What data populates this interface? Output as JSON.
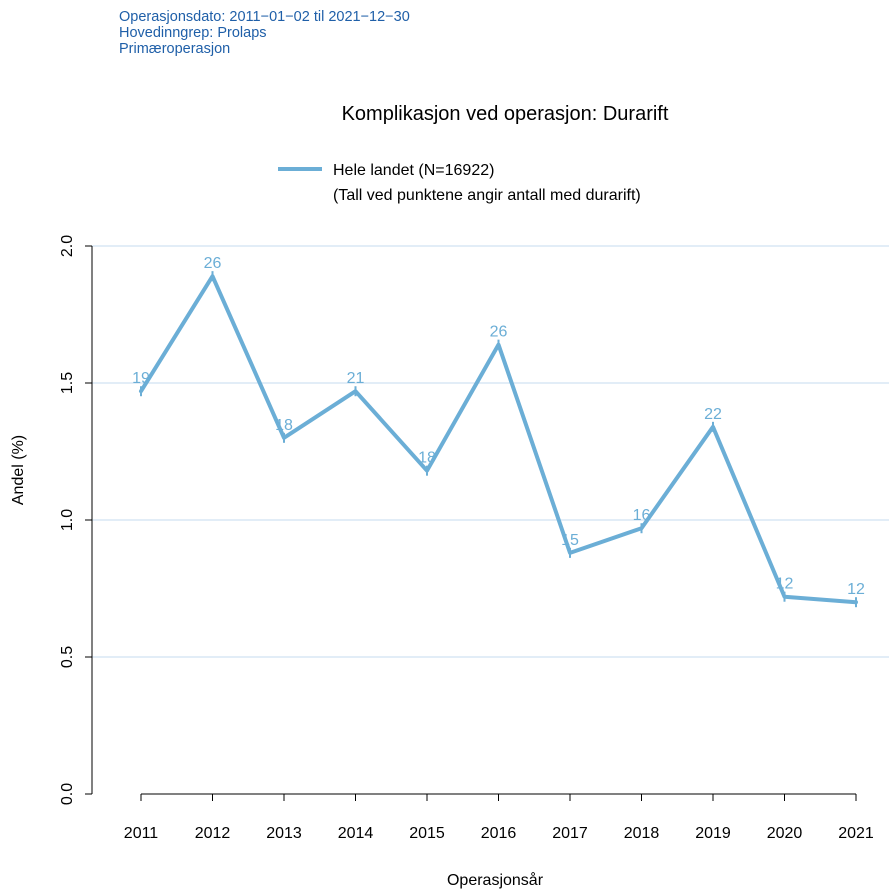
{
  "header": {
    "lines": [
      "Operasjonsdato: 2011−01−02 til 2021−12−30",
      "Hovedinngrep: Prolaps",
      "Primæroperasjon"
    ]
  },
  "colors": {
    "series": "#6baed6",
    "label": "#6baed6",
    "grid": "#c6dbef",
    "meta_text": "#1f5fa8",
    "axis": "#000000"
  },
  "chart_data": {
    "type": "line",
    "title": "Komplikasjon ved operasjon: Durarift",
    "xlabel": "Operasjonsår",
    "ylabel": "Andel (%)",
    "ylim": [
      0,
      2.0
    ],
    "yticks": [
      "0.0",
      "0.5",
      "1.0",
      "1.5",
      "2.0"
    ],
    "grid": "horizontal",
    "legend_position": "top",
    "legend": {
      "series_label": "Hele landet (N=16922)",
      "note": "(Tall ved punktene angir antall med durarift)"
    },
    "categories": [
      "2011",
      "2012",
      "2013",
      "2014",
      "2015",
      "2016",
      "2017",
      "2018",
      "2019",
      "2020",
      "2021"
    ],
    "series": [
      {
        "name": "Hele landet (N=16922)",
        "values": [
          1.47,
          1.89,
          1.3,
          1.47,
          1.18,
          1.64,
          0.88,
          0.97,
          1.34,
          0.72,
          0.7
        ],
        "point_labels": [
          "19",
          "26",
          "18",
          "21",
          "18",
          "26",
          "15",
          "16",
          "22",
          "12",
          "12"
        ]
      }
    ]
  }
}
